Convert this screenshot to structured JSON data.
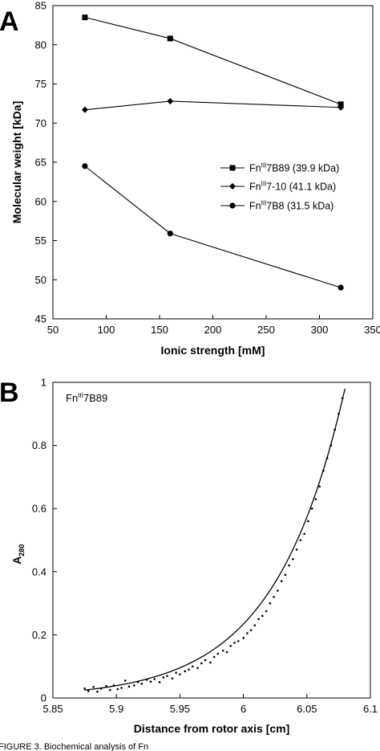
{
  "chart_data": [
    {
      "type": "line",
      "panel_label": "A",
      "xlabel": "Ionic strength [mM]",
      "ylabel": "Molecular weight [kDa]",
      "xlim": [
        50,
        350
      ],
      "ylim": [
        45,
        85
      ],
      "xticks": [
        50,
        100,
        150,
        200,
        250,
        300,
        350
      ],
      "yticks": [
        45,
        50,
        55,
        60,
        65,
        70,
        75,
        80,
        85
      ],
      "xtick_labels": [
        "50",
        "100",
        "150",
        "200",
        "250",
        "300",
        "350"
      ],
      "ytick_labels": [
        "45",
        "50",
        "55",
        "60",
        "65",
        "70",
        "75",
        "80",
        "85"
      ],
      "x": [
        80,
        160,
        320
      ],
      "legend_position": "center-right",
      "series": [
        {
          "name": "FnIII7B89 (39.9 kDa)",
          "name_parts": [
            "Fn",
            "III",
            "7B89 (39.9 kDa)"
          ],
          "marker": "square",
          "values": [
            83.5,
            80.8,
            72.4
          ]
        },
        {
          "name": "FnIII7-10 (41.1 kDa)",
          "name_parts": [
            "Fn",
            "III",
            "7-10 (41.1 kDa)"
          ],
          "marker": "diamond",
          "values": [
            71.7,
            72.8,
            72.0
          ]
        },
        {
          "name": "FnIII7B8 (31.5 kDa)",
          "name_parts": [
            "Fn",
            "III",
            "7B8 (31.5 kDa)"
          ],
          "marker": "circle",
          "values": [
            64.5,
            55.9,
            49.0
          ]
        }
      ]
    },
    {
      "type": "scatter",
      "panel_label": "B",
      "annotation_parts": [
        "Fn",
        "III",
        "7B89"
      ],
      "xlabel": "Distance from rotor axis [cm]",
      "ylabel_parts": [
        "A",
        "280"
      ],
      "xlim": [
        5.85,
        6.1
      ],
      "ylim": [
        0,
        1
      ],
      "xticks": [
        5.85,
        5.9,
        5.95,
        6.0,
        6.05,
        6.1
      ],
      "yticks": [
        0,
        0.2,
        0.4,
        0.6,
        0.8,
        1
      ],
      "xtick_labels": [
        "5.85",
        "5.9",
        "5.95",
        "6",
        "6.05",
        "6.1"
      ],
      "ytick_labels": [
        "0",
        "0.2",
        "0.4",
        "0.6",
        "0.8",
        "1"
      ],
      "fit": {
        "type": "exponential",
        "x0": 5.875,
        "y0": 0.025,
        "x1": 6.08,
        "y1": 0.98
      },
      "points": {
        "x": [
          5.875,
          5.878,
          5.882,
          5.885,
          5.888,
          5.892,
          5.895,
          5.898,
          5.901,
          5.904,
          5.907,
          5.91,
          5.914,
          5.917,
          5.92,
          5.924,
          5.927,
          5.93,
          5.934,
          5.937,
          5.94,
          5.944,
          5.947,
          5.95,
          5.954,
          5.957,
          5.96,
          5.964,
          5.967,
          5.97,
          5.974,
          5.977,
          5.98,
          5.984,
          5.987,
          5.99,
          5.993,
          5.996,
          6.0,
          6.003,
          6.006,
          6.009,
          6.012,
          6.015,
          6.018,
          6.021,
          6.024,
          6.027,
          6.03,
          6.033,
          6.036,
          6.039,
          6.042,
          6.045,
          6.048,
          6.051,
          6.054,
          6.057,
          6.06,
          6.063,
          6.066,
          6.069,
          6.072,
          6.075,
          6.078
        ],
        "y": [
          0.03,
          0.022,
          0.035,
          0.02,
          0.03,
          0.038,
          0.025,
          0.04,
          0.028,
          0.032,
          0.055,
          0.036,
          0.04,
          0.05,
          0.045,
          0.058,
          0.052,
          0.06,
          0.05,
          0.065,
          0.07,
          0.062,
          0.08,
          0.075,
          0.085,
          0.09,
          0.1,
          0.095,
          0.11,
          0.12,
          0.112,
          0.13,
          0.14,
          0.15,
          0.145,
          0.165,
          0.175,
          0.18,
          0.19,
          0.205,
          0.215,
          0.23,
          0.25,
          0.26,
          0.275,
          0.3,
          0.32,
          0.34,
          0.37,
          0.39,
          0.42,
          0.44,
          0.47,
          0.5,
          0.52,
          0.56,
          0.6,
          0.63,
          0.67,
          0.72,
          0.76,
          0.8,
          0.85,
          0.9,
          0.95
        ]
      }
    }
  ],
  "caption_fragment": "FIGURE 3. Biochemical analysis of Fn"
}
